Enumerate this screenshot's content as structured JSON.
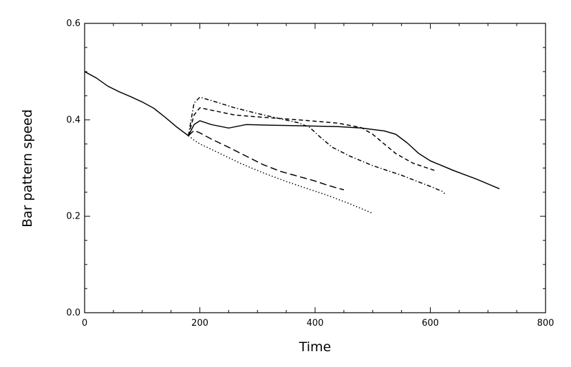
{
  "chart_data": {
    "type": "line",
    "xlabel": "Time",
    "ylabel": "Bar pattern speed",
    "xlim": [
      0,
      800
    ],
    "ylim": [
      0.0,
      0.6
    ],
    "x_ticks": [
      "0",
      "200",
      "400",
      "600",
      "800"
    ],
    "y_ticks": [
      "0.0",
      "0.2",
      "0.4",
      "0.6"
    ],
    "grid": false,
    "legend": "none",
    "series": [
      {
        "style": "solid",
        "points": [
          [
            0,
            0.5
          ],
          [
            20,
            0.487
          ],
          [
            40,
            0.47
          ],
          [
            60,
            0.458
          ],
          [
            80,
            0.448
          ],
          [
            100,
            0.437
          ],
          [
            120,
            0.424
          ],
          [
            140,
            0.405
          ],
          [
            160,
            0.385
          ],
          [
            180,
            0.367
          ],
          [
            190,
            0.39
          ],
          [
            200,
            0.398
          ],
          [
            220,
            0.39
          ],
          [
            250,
            0.383
          ],
          [
            280,
            0.39
          ],
          [
            320,
            0.389
          ],
          [
            360,
            0.388
          ],
          [
            400,
            0.387
          ],
          [
            440,
            0.386
          ],
          [
            480,
            0.383
          ],
          [
            520,
            0.377
          ],
          [
            540,
            0.37
          ],
          [
            560,
            0.352
          ],
          [
            580,
            0.33
          ],
          [
            600,
            0.315
          ],
          [
            640,
            0.295
          ],
          [
            680,
            0.277
          ],
          [
            720,
            0.257
          ]
        ]
      },
      {
        "style": "dashed",
        "points": [
          [
            180,
            0.367
          ],
          [
            190,
            0.41
          ],
          [
            200,
            0.425
          ],
          [
            220,
            0.42
          ],
          [
            260,
            0.41
          ],
          [
            300,
            0.406
          ],
          [
            360,
            0.401
          ],
          [
            400,
            0.397
          ],
          [
            440,
            0.393
          ],
          [
            480,
            0.384
          ],
          [
            500,
            0.37
          ],
          [
            520,
            0.35
          ],
          [
            540,
            0.33
          ],
          [
            570,
            0.31
          ],
          [
            600,
            0.298
          ],
          [
            610,
            0.294
          ]
        ]
      },
      {
        "style": "dash-dot",
        "points": [
          [
            180,
            0.367
          ],
          [
            190,
            0.435
          ],
          [
            200,
            0.447
          ],
          [
            220,
            0.44
          ],
          [
            260,
            0.425
          ],
          [
            300,
            0.413
          ],
          [
            340,
            0.402
          ],
          [
            370,
            0.394
          ],
          [
            390,
            0.385
          ],
          [
            410,
            0.363
          ],
          [
            430,
            0.343
          ],
          [
            460,
            0.325
          ],
          [
            500,
            0.305
          ],
          [
            550,
            0.285
          ],
          [
            600,
            0.262
          ],
          [
            620,
            0.252
          ],
          [
            625,
            0.247
          ]
        ]
      },
      {
        "style": "long-dash",
        "points": [
          [
            180,
            0.367
          ],
          [
            190,
            0.378
          ],
          [
            200,
            0.373
          ],
          [
            220,
            0.36
          ],
          [
            250,
            0.343
          ],
          [
            280,
            0.325
          ],
          [
            310,
            0.307
          ],
          [
            340,
            0.293
          ],
          [
            370,
            0.283
          ],
          [
            400,
            0.273
          ],
          [
            420,
            0.265
          ],
          [
            440,
            0.258
          ],
          [
            450,
            0.255
          ]
        ]
      },
      {
        "style": "dotted",
        "points": [
          [
            180,
            0.367
          ],
          [
            190,
            0.358
          ],
          [
            200,
            0.35
          ],
          [
            230,
            0.333
          ],
          [
            270,
            0.31
          ],
          [
            310,
            0.29
          ],
          [
            350,
            0.272
          ],
          [
            390,
            0.256
          ],
          [
            420,
            0.244
          ],
          [
            460,
            0.226
          ],
          [
            500,
            0.206
          ]
        ]
      }
    ]
  }
}
